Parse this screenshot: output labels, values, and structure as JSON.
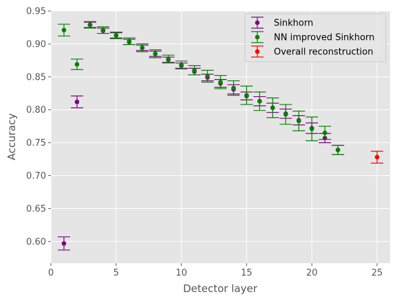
{
  "chart_data": {
    "type": "scatter",
    "title": "",
    "xlabel": "Detector layer",
    "ylabel": "Accuracy",
    "xlim": [
      0,
      26
    ],
    "ylim": [
      0.567,
      0.95
    ],
    "xticks": [
      0,
      5,
      10,
      15,
      20,
      25
    ],
    "xtick_labels": [
      "0",
      "5",
      "10",
      "15",
      "20",
      "25"
    ],
    "yticks": [
      0.6,
      0.65,
      0.7,
      0.75,
      0.8,
      0.85,
      0.9,
      0.95
    ],
    "ytick_labels": [
      "0.60",
      "0.65",
      "0.70",
      "0.75",
      "0.80",
      "0.85",
      "0.90",
      "0.95"
    ],
    "grid": true,
    "legend_position": "top-right",
    "series": [
      {
        "name": "Sinkhorn",
        "color": "#800080",
        "x": [
          1,
          2,
          3,
          4,
          5,
          6,
          7,
          8,
          9,
          10,
          11,
          12,
          13,
          14,
          15,
          16,
          17,
          18,
          19,
          20,
          21,
          22
        ],
        "y": [
          0.597,
          0.812,
          0.929,
          0.92,
          0.913,
          0.903,
          0.894,
          0.885,
          0.876,
          0.867,
          0.858,
          0.849,
          0.84,
          0.831,
          0.821,
          0.813,
          0.803,
          0.794,
          0.784,
          0.772,
          0.757,
          0.739
        ],
        "err": [
          0.01,
          0.009,
          0.004,
          0.004,
          0.004,
          0.004,
          0.004,
          0.004,
          0.004,
          0.004,
          0.005,
          0.005,
          0.006,
          0.007,
          0.006,
          0.007,
          0.007,
          0.007,
          0.007,
          0.008,
          0.007,
          0.007
        ]
      },
      {
        "name": "NN improved Sinkhorn",
        "color": "#008000",
        "x": [
          1,
          2,
          3,
          4,
          5,
          6,
          7,
          8,
          9,
          10,
          11,
          12,
          13,
          14,
          15,
          16,
          17,
          18,
          19,
          20,
          21,
          22
        ],
        "y": [
          0.921,
          0.869,
          0.929,
          0.921,
          0.913,
          0.904,
          0.894,
          0.885,
          0.877,
          0.868,
          0.86,
          0.851,
          0.842,
          0.833,
          0.822,
          0.813,
          0.803,
          0.793,
          0.783,
          0.771,
          0.765,
          0.739
        ],
        "err": [
          0.009,
          0.008,
          0.005,
          0.005,
          0.005,
          0.005,
          0.006,
          0.006,
          0.006,
          0.006,
          0.007,
          0.009,
          0.01,
          0.011,
          0.014,
          0.014,
          0.015,
          0.015,
          0.015,
          0.018,
          0.01,
          0.007
        ]
      },
      {
        "name": "Overall reconstruction",
        "color": "#ff0000",
        "x": [
          25
        ],
        "y": [
          0.728
        ],
        "err": [
          0.009
        ]
      }
    ]
  }
}
